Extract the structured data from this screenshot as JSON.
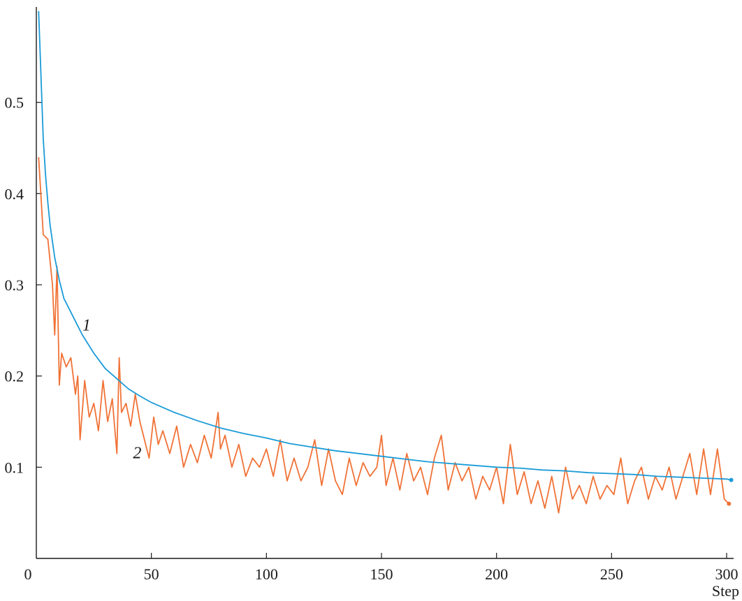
{
  "chart_data": {
    "type": "line",
    "xlabel": "Step",
    "ylabel": "",
    "xlim": [
      0,
      302
    ],
    "ylim": [
      0,
      0.6
    ],
    "xticks": [
      0,
      50,
      100,
      150,
      200,
      250,
      300
    ],
    "yticks": [
      0.1,
      0.2,
      0.3,
      0.4,
      0.5
    ],
    "xtick_labels": [
      "0",
      "50",
      "100",
      "150",
      "200",
      "250",
      "300"
    ],
    "ytick_labels": [
      "0.1",
      "0.2",
      "0.3",
      "0.4",
      "0.5"
    ],
    "grid": false,
    "legend": "none",
    "series": [
      {
        "name": "1",
        "color": "#1a9bd7",
        "x": [
          1,
          2,
          3,
          4,
          5,
          6,
          8,
          10,
          12,
          15,
          18,
          20,
          25,
          30,
          35,
          40,
          45,
          50,
          60,
          70,
          80,
          90,
          100,
          110,
          120,
          130,
          140,
          150,
          160,
          170,
          180,
          190,
          200,
          210,
          220,
          230,
          240,
          250,
          260,
          270,
          280,
          290,
          300,
          302
        ],
        "values": [
          0.6,
          0.53,
          0.46,
          0.42,
          0.39,
          0.365,
          0.33,
          0.305,
          0.285,
          0.27,
          0.255,
          0.245,
          0.225,
          0.208,
          0.197,
          0.186,
          0.178,
          0.171,
          0.16,
          0.151,
          0.143,
          0.137,
          0.132,
          0.126,
          0.122,
          0.118,
          0.115,
          0.112,
          0.109,
          0.106,
          0.104,
          0.102,
          0.1,
          0.099,
          0.097,
          0.096,
          0.094,
          0.093,
          0.092,
          0.09,
          0.089,
          0.088,
          0.087,
          0.086
        ]
      },
      {
        "name": "2",
        "color": "#f07236",
        "x": [
          1,
          3,
          5,
          7,
          8,
          9,
          10,
          11,
          13,
          15,
          17,
          18,
          19,
          21,
          23,
          25,
          27,
          29,
          31,
          33,
          35,
          36,
          37,
          39,
          41,
          43,
          45,
          47,
          49,
          51,
          53,
          55,
          58,
          61,
          64,
          67,
          70,
          73,
          76,
          79,
          80,
          82,
          85,
          88,
          91,
          94,
          97,
          100,
          103,
          106,
          109,
          112,
          115,
          118,
          121,
          124,
          127,
          130,
          133,
          136,
          139,
          142,
          145,
          148,
          150,
          152,
          155,
          158,
          161,
          164,
          167,
          170,
          173,
          176,
          179,
          182,
          185,
          188,
          191,
          194,
          197,
          200,
          203,
          206,
          209,
          212,
          215,
          218,
          221,
          224,
          227,
          230,
          233,
          236,
          239,
          242,
          245,
          248,
          251,
          254,
          257,
          260,
          263,
          266,
          269,
          272,
          275,
          278,
          281,
          284,
          287,
          290,
          293,
          296,
          299,
          301
        ],
        "values": [
          0.44,
          0.355,
          0.35,
          0.3,
          0.245,
          0.32,
          0.19,
          0.225,
          0.21,
          0.22,
          0.18,
          0.2,
          0.13,
          0.195,
          0.155,
          0.17,
          0.14,
          0.195,
          0.15,
          0.175,
          0.115,
          0.22,
          0.16,
          0.17,
          0.145,
          0.18,
          0.15,
          0.13,
          0.11,
          0.155,
          0.125,
          0.14,
          0.115,
          0.145,
          0.1,
          0.125,
          0.105,
          0.135,
          0.11,
          0.16,
          0.12,
          0.135,
          0.1,
          0.125,
          0.09,
          0.11,
          0.1,
          0.12,
          0.09,
          0.13,
          0.085,
          0.11,
          0.085,
          0.1,
          0.13,
          0.08,
          0.12,
          0.085,
          0.07,
          0.11,
          0.08,
          0.105,
          0.09,
          0.1,
          0.135,
          0.08,
          0.11,
          0.075,
          0.115,
          0.085,
          0.1,
          0.07,
          0.11,
          0.135,
          0.075,
          0.105,
          0.085,
          0.1,
          0.065,
          0.09,
          0.075,
          0.1,
          0.06,
          0.125,
          0.07,
          0.095,
          0.06,
          0.085,
          0.055,
          0.09,
          0.05,
          0.1,
          0.065,
          0.08,
          0.06,
          0.09,
          0.065,
          0.08,
          0.07,
          0.11,
          0.06,
          0.085,
          0.1,
          0.065,
          0.09,
          0.075,
          0.1,
          0.065,
          0.09,
          0.115,
          0.07,
          0.12,
          0.07,
          0.12,
          0.065,
          0.06
        ]
      }
    ],
    "annotations": [
      {
        "text": "1",
        "x": 20,
        "y": 0.25,
        "series": 0
      },
      {
        "text": "2",
        "x": 42,
        "y": 0.11,
        "series": 1
      }
    ]
  }
}
